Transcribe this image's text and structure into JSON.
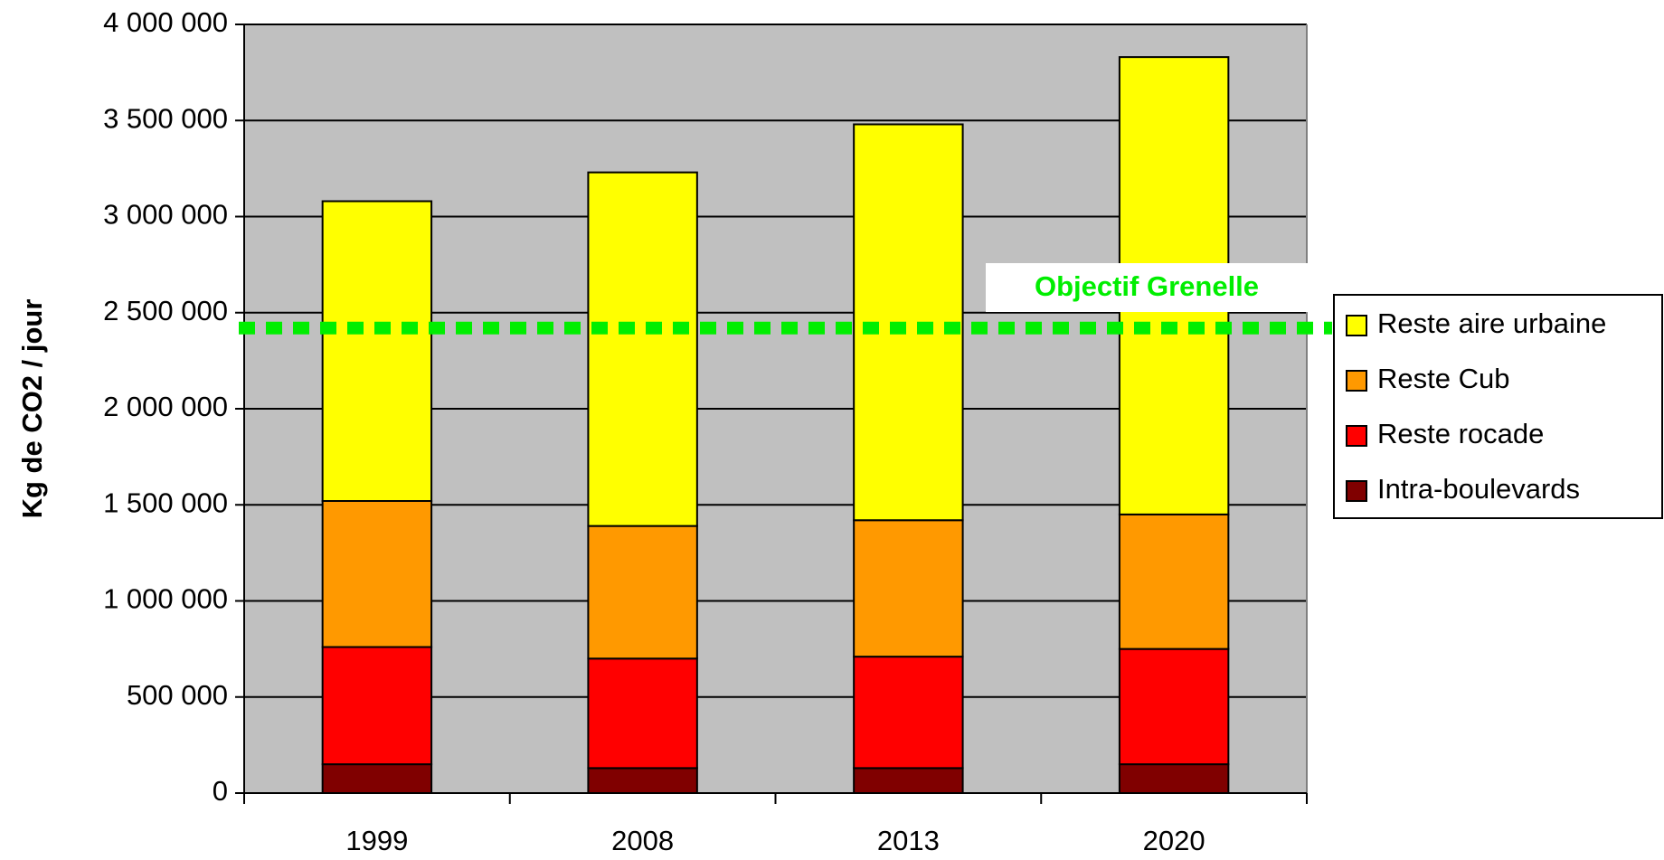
{
  "chart_data": {
    "type": "bar",
    "stacked": true,
    "ylabel": "Kg de CO2 / jour",
    "categories": [
      "1999",
      "2008",
      "2013",
      "2020"
    ],
    "series": [
      {
        "name": "Intra-boulevards",
        "color": "#800000",
        "values": [
          150000,
          130000,
          130000,
          150000
        ]
      },
      {
        "name": "Reste rocade",
        "color": "#ff0000",
        "values": [
          610000,
          570000,
          580000,
          600000
        ]
      },
      {
        "name": "Reste Cub",
        "color": "#ff9900",
        "values": [
          760000,
          690000,
          710000,
          700000
        ]
      },
      {
        "name": "Reste aire urbaine",
        "color": "#ffff00",
        "values": [
          1560000,
          1840000,
          2060000,
          2380000
        ]
      }
    ],
    "ylim": [
      0,
      4000000
    ],
    "yticks": [
      0,
      {
        "value": 500000,
        "label": "500 000"
      },
      {
        "value": 1000000,
        "label": "1 000 000"
      },
      {
        "value": 1500000,
        "label": "1 500 000"
      },
      {
        "value": 2000000,
        "label": "2 000 000"
      },
      {
        "value": 2500000,
        "label": "2 500 000"
      },
      {
        "value": 3000000,
        "label": "3 000 000"
      },
      {
        "value": 3500000,
        "label": "3 500 000"
      },
      {
        "value": 4000000,
        "label": "4 000 000"
      }
    ],
    "grid": true,
    "legend": "right",
    "target": {
      "label": "Objectif Grenelle",
      "value": 2420000,
      "color": "#00ee00"
    }
  }
}
